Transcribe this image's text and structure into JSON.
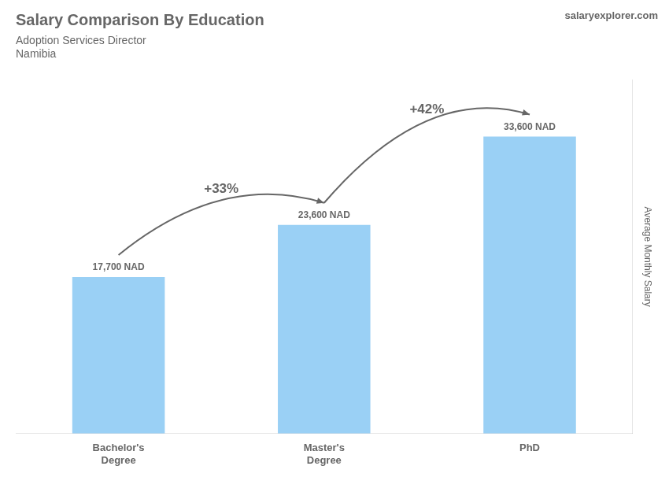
{
  "chart_data": {
    "type": "bar",
    "title": "Salary Comparison By Education",
    "subtitle": [
      "Adoption Services Director",
      "Namibia"
    ],
    "ylabel": "Average Monthly Salary",
    "categories": [
      "Bachelor's\nDegree",
      "Master's\nDegree",
      "PhD"
    ],
    "values": [
      17700,
      23600,
      33600
    ],
    "value_labels": [
      "17,700 NAD",
      "23,600 NAD",
      "33,600 NAD"
    ],
    "data_labels": true,
    "annotations": [
      "+33%",
      "+42%",
      "salaryexplorer.com"
    ],
    "ylim": [
      0,
      40000
    ],
    "grid": false,
    "tick_labels": "x"
  }
}
